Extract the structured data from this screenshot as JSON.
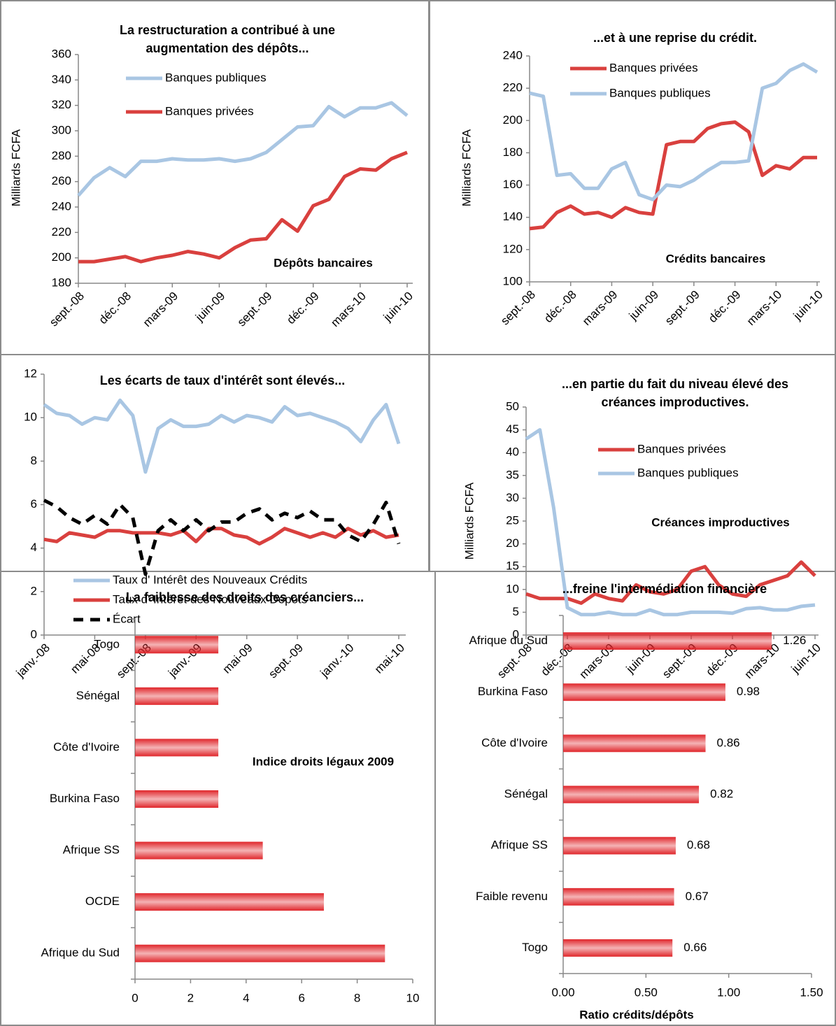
{
  "chart_data": [
    {
      "type": "line",
      "title": [
        "La restructuration a contribué à une",
        "augmentation des dépôts..."
      ],
      "ylabel": "Milliards FCFA",
      "annotation": "Dépôts bancaires",
      "categories": [
        "sept.-08",
        null,
        null,
        "déc.-08",
        null,
        null,
        "mars-09",
        null,
        null,
        "juin-09",
        null,
        null,
        "sept.-09",
        null,
        null,
        "déc.-09",
        null,
        null,
        "mars-10",
        null,
        null,
        "juin-10"
      ],
      "series": [
        {
          "name": "Banques publiques",
          "color": "#a9c6e3",
          "values": [
            249,
            263,
            271,
            264,
            276,
            276,
            278,
            277,
            277,
            278,
            276,
            278,
            283,
            293,
            303,
            304,
            319,
            311,
            318,
            318,
            322,
            312
          ]
        },
        {
          "name": "Banques privées",
          "color": "#d9403e",
          "values": [
            197,
            197,
            199,
            201,
            197,
            200,
            202,
            205,
            203,
            200,
            208,
            214,
            215,
            230,
            221,
            241,
            246,
            264,
            270,
            269,
            278,
            283
          ]
        }
      ],
      "ylim": [
        180,
        360
      ],
      "yticks": [
        180,
        200,
        220,
        240,
        260,
        280,
        300,
        320,
        340,
        360
      ]
    },
    {
      "type": "line",
      "title": [
        "...et à une reprise du crédit."
      ],
      "ylabel": "Milliards FCFA",
      "annotation": "Crédits bancaires",
      "categories": [
        "sept.-08",
        null,
        null,
        "déc.-08",
        null,
        null,
        "mars-09",
        null,
        null,
        "juin-09",
        null,
        null,
        "sept.-09",
        null,
        null,
        "déc.-09",
        null,
        null,
        "mars-10",
        null,
        null,
        "juin-10"
      ],
      "series": [
        {
          "name": "Banques privées",
          "color": "#d9403e",
          "values": [
            133,
            134,
            143,
            147,
            142,
            143,
            140,
            146,
            143,
            142,
            185,
            187,
            187,
            195,
            198,
            199,
            193,
            166,
            172,
            170,
            177,
            177
          ]
        },
        {
          "name": "Banques publiques",
          "color": "#a9c6e3",
          "values": [
            217,
            215,
            166,
            167,
            158,
            158,
            170,
            174,
            154,
            151,
            160,
            159,
            163,
            169,
            174,
            174,
            175,
            220,
            223,
            231,
            235,
            230
          ]
        }
      ],
      "ylim": [
        100,
        240
      ],
      "yticks": [
        100,
        120,
        140,
        160,
        180,
        200,
        220,
        240
      ]
    },
    {
      "type": "line",
      "title": [
        "Les écarts de taux d'intérêt sont élevés..."
      ],
      "categories": [
        "janv.-08",
        null,
        null,
        null,
        "mai-08",
        null,
        null,
        null,
        "sept.-08",
        null,
        null,
        null,
        "janv.-09",
        null,
        null,
        null,
        "mai-09",
        null,
        null,
        null,
        "sept.-09",
        null,
        null,
        null,
        "janv.-10",
        null,
        null,
        null,
        "mai-10"
      ],
      "series": [
        {
          "name": "Taux d' Intérêt des Nouveaux Crédits",
          "color": "#a9c6e3",
          "values": [
            10.6,
            10.2,
            10.1,
            9.7,
            10.0,
            9.9,
            10.8,
            10.1,
            7.5,
            9.5,
            9.9,
            9.6,
            9.6,
            9.7,
            10.1,
            9.8,
            10.1,
            10.0,
            9.8,
            10.5,
            10.1,
            10.2,
            10.0,
            9.8,
            9.5,
            8.9,
            9.9,
            10.6,
            8.8
          ]
        },
        {
          "name": "Taux d' Intérêt des Nouveaux Dépots",
          "color": "#d9403e",
          "values": [
            4.4,
            4.3,
            4.7,
            4.6,
            4.5,
            4.8,
            4.8,
            4.7,
            4.7,
            4.7,
            4.6,
            4.8,
            4.3,
            4.9,
            4.9,
            4.6,
            4.5,
            4.2,
            4.5,
            4.9,
            4.7,
            4.5,
            4.7,
            4.5,
            4.9,
            4.6,
            4.8,
            4.5,
            4.6
          ]
        },
        {
          "name": "Écart",
          "color": "#000000",
          "linestyle": "dashed",
          "values": [
            6.2,
            5.9,
            5.4,
            5.1,
            5.5,
            5.1,
            6.0,
            5.4,
            2.8,
            4.8,
            5.3,
            4.8,
            5.3,
            4.8,
            5.2,
            5.2,
            5.6,
            5.8,
            5.3,
            5.6,
            5.4,
            5.7,
            5.3,
            5.3,
            4.6,
            4.3,
            5.1,
            6.1,
            4.2
          ]
        }
      ],
      "ylim": [
        0,
        12
      ],
      "yticks": [
        0,
        2,
        4,
        6,
        8,
        10,
        12
      ]
    },
    {
      "type": "line",
      "title": [
        "...en partie du fait du niveau élevé des",
        "créances improductives."
      ],
      "ylabel": "Milliards FCFA",
      "annotation": "Créances improductives",
      "categories": [
        "sept.-08",
        null,
        null,
        "déc.-08",
        null,
        null,
        "mars-09",
        null,
        null,
        "juin-09",
        null,
        null,
        "sept.-09",
        null,
        null,
        "déc.-09",
        null,
        null,
        "mars-10",
        null,
        null,
        "juin-10"
      ],
      "series": [
        {
          "name": "Banques privées",
          "color": "#d9403e",
          "values": [
            9,
            8,
            8,
            8,
            7,
            9,
            8,
            7.5,
            11,
            9.5,
            9,
            10,
            14,
            15,
            11,
            9,
            8.5,
            11,
            12,
            13,
            16,
            13
          ]
        },
        {
          "name": "Banques publiques",
          "color": "#a9c6e3",
          "values": [
            43,
            45,
            28,
            6,
            4.5,
            4.5,
            5,
            4.5,
            4.5,
            5.5,
            4.5,
            4.5,
            5,
            5,
            5,
            4.8,
            5.8,
            6,
            5.5,
            5.5,
            6.3,
            6.6
          ]
        }
      ],
      "ylim": [
        0,
        50
      ],
      "yticks": [
        0,
        5,
        10,
        15,
        20,
        25,
        30,
        35,
        40,
        45,
        50
      ]
    },
    {
      "type": "barh",
      "title": [
        "La faiblesse des droits des créanciers..."
      ],
      "annotation": "Indice droits légaux 2009",
      "categories": [
        "Togo",
        "Sénégal",
        "Côte d'Ivoire",
        "Burkina Faso",
        "Afrique SS",
        "OCDE",
        "Afrique du Sud"
      ],
      "values": [
        3,
        3,
        3,
        3,
        4.6,
        6.8,
        9
      ],
      "color": "#e0262b",
      "xlim": [
        0,
        10
      ],
      "xticks": [
        0,
        2,
        4,
        6,
        8,
        10
      ]
    },
    {
      "type": "barh",
      "title": [
        "...freine l'intermédiation financière"
      ],
      "xlabel": "Ratio crédits/dépôts",
      "data_labels": true,
      "categories": [
        "Afrique du Sud",
        "Burkina Faso",
        "Côte d'Ivoire",
        "Sénégal",
        "Afrique SS",
        "Faible revenu",
        "Togo"
      ],
      "values": [
        1.26,
        0.98,
        0.86,
        0.82,
        0.68,
        0.67,
        0.66
      ],
      "color": "#e0262b",
      "xlim": [
        0,
        1.5
      ],
      "xticks": [
        {
          "value": 0,
          "label": "0.00"
        },
        {
          "value": 0.5,
          "label": "0.50"
        },
        {
          "value": 1,
          "label": "1.00"
        },
        {
          "value": 1.5,
          "label": "1.50"
        }
      ]
    }
  ]
}
